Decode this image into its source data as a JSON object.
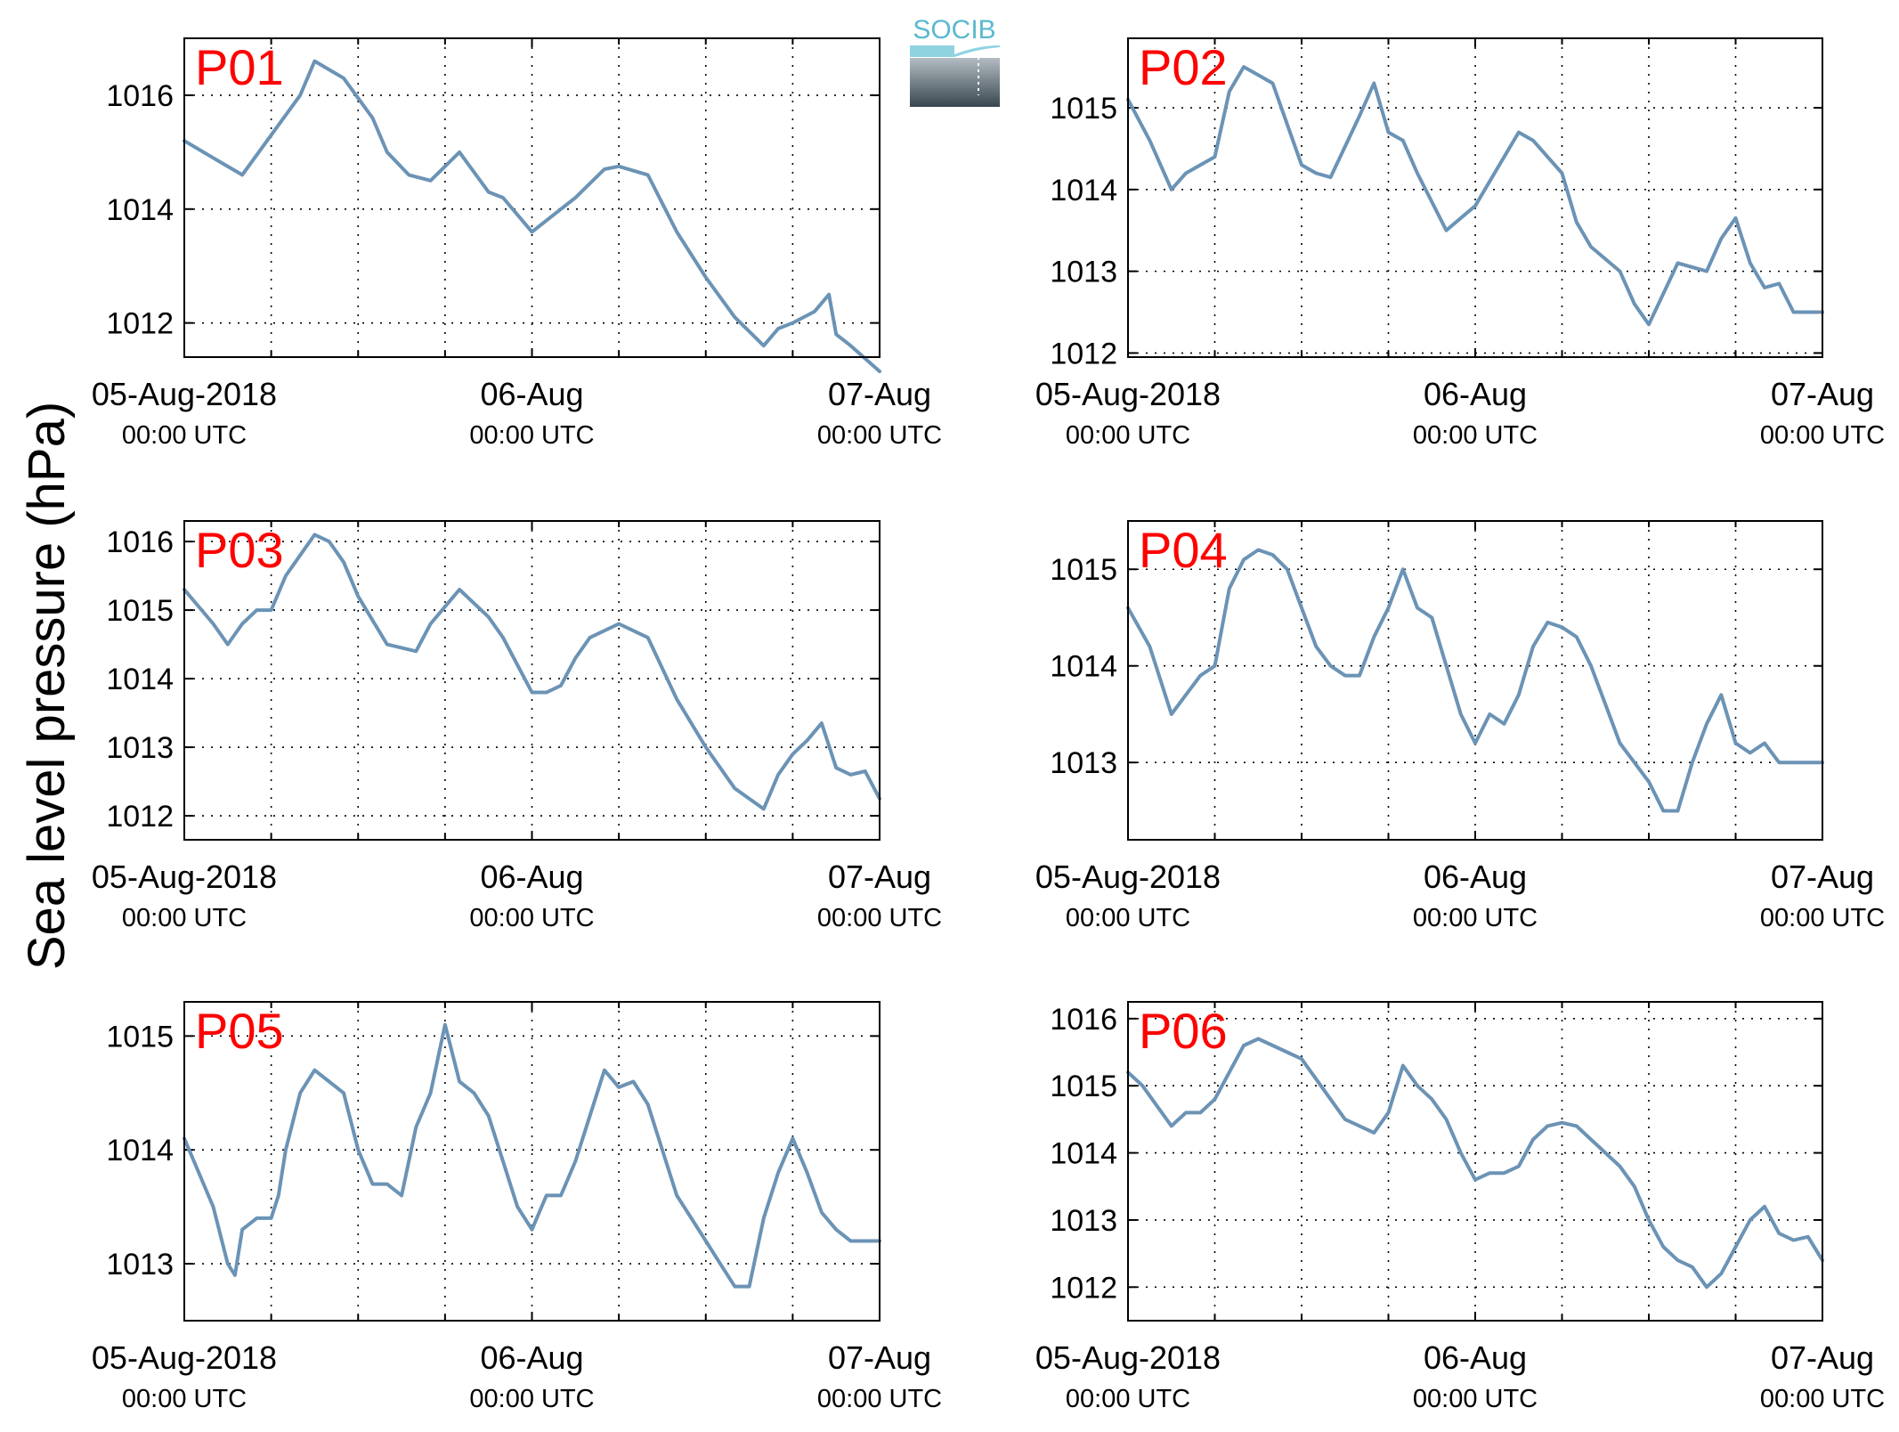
{
  "figure": {
    "ylabel": "Sea level pressure (hPa)",
    "logo_text": "SOCIB"
  },
  "colors": {
    "line": "#6b93b5",
    "panel_label": "#ff0000",
    "axis": "#000000",
    "grid": "#000000",
    "logo_text": "#5ab9cf",
    "logo_top": "#b3bcc3",
    "logo_bottom": "#38474f"
  },
  "chart_data": [
    {
      "type": "line",
      "name": "P01",
      "x_range": [
        "2018-08-05 00:00",
        "2018-08-07 00:00"
      ],
      "xticks": [
        {
          "main": "05-Aug-2018",
          "sub": "00:00 UTC"
        },
        {
          "main": "06-Aug",
          "sub": "00:00 UTC"
        },
        {
          "main": "07-Aug",
          "sub": "00:00 UTC"
        }
      ],
      "ylim": [
        1011.4,
        1017.0
      ],
      "yticks": [
        1012,
        1014,
        1016
      ],
      "x_hours": [
        0,
        2,
        4,
        6,
        8,
        9,
        11,
        13,
        14,
        15.5,
        17,
        19,
        21,
        22,
        24,
        26,
        27,
        29,
        30,
        32,
        34,
        36,
        38,
        40,
        41,
        42,
        43.5,
        44.5,
        45,
        46,
        48
      ],
      "y": [
        1015.2,
        1014.9,
        1014.6,
        1015.3,
        1016.0,
        1016.6,
        1016.3,
        1015.6,
        1015.0,
        1014.6,
        1014.5,
        1015.0,
        1014.3,
        1014.2,
        1013.6,
        1014.0,
        1014.2,
        1014.7,
        1014.75,
        1014.6,
        1013.6,
        1012.8,
        1012.1,
        1011.6,
        1011.9,
        1012.0,
        1012.2,
        1012.5,
        1011.8,
        1011.6,
        1011.15
      ],
      "grid": true
    },
    {
      "type": "line",
      "name": "P02",
      "x_range": [
        "2018-08-05 00:00",
        "2018-08-07 00:00"
      ],
      "xticks": [
        {
          "main": "05-Aug-2018",
          "sub": "00:00 UTC"
        },
        {
          "main": "06-Aug",
          "sub": "00:00 UTC"
        },
        {
          "main": "07-Aug",
          "sub": "00:00 UTC"
        }
      ],
      "ylim": [
        1011.95,
        1015.85
      ],
      "yticks": [
        1012,
        1013,
        1014,
        1015
      ],
      "x_hours": [
        0,
        1.5,
        3,
        4,
        5,
        6,
        7,
        8,
        9,
        10,
        12,
        13,
        14,
        16,
        17,
        18,
        19,
        20,
        22,
        24,
        26,
        27,
        28,
        30,
        31,
        32,
        34,
        35,
        36,
        38,
        40,
        41,
        42,
        43,
        44,
        45,
        46,
        47,
        48
      ],
      "y": [
        1015.1,
        1014.6,
        1014.0,
        1014.2,
        1014.3,
        1014.4,
        1015.2,
        1015.5,
        1015.4,
        1015.3,
        1014.3,
        1014.2,
        1014.15,
        1014.9,
        1015.3,
        1014.7,
        1014.6,
        1014.2,
        1013.5,
        1013.8,
        1014.4,
        1014.7,
        1014.6,
        1014.2,
        1013.6,
        1013.3,
        1013.0,
        1012.6,
        1012.35,
        1013.1,
        1013.0,
        1013.4,
        1013.65,
        1013.1,
        1012.8,
        1012.85,
        1012.5,
        1012.5,
        1012.5
      ],
      "grid": true
    },
    {
      "type": "line",
      "name": "P03",
      "x_range": [
        "2018-08-05 00:00",
        "2018-08-07 00:00"
      ],
      "xticks": [
        {
          "main": "05-Aug-2018",
          "sub": "00:00 UTC"
        },
        {
          "main": "06-Aug",
          "sub": "00:00 UTC"
        },
        {
          "main": "07-Aug",
          "sub": "00:00 UTC"
        }
      ],
      "ylim": [
        1011.65,
        1016.3
      ],
      "yticks": [
        1012,
        1013,
        1014,
        1015,
        1016
      ],
      "x_hours": [
        0,
        2,
        3,
        4,
        5,
        6,
        7,
        9,
        10,
        11,
        12,
        14,
        16,
        17,
        19,
        21,
        22,
        23,
        24,
        25,
        26,
        27,
        28,
        30,
        32,
        34,
        36,
        38,
        40,
        41,
        42,
        43,
        44,
        45,
        46,
        47,
        48
      ],
      "y": [
        1015.3,
        1014.8,
        1014.5,
        1014.8,
        1015.0,
        1015.0,
        1015.5,
        1016.1,
        1016.0,
        1015.7,
        1015.2,
        1014.5,
        1014.4,
        1014.8,
        1015.3,
        1014.9,
        1014.6,
        1014.2,
        1013.8,
        1013.8,
        1013.9,
        1014.3,
        1014.6,
        1014.8,
        1014.6,
        1013.7,
        1013.0,
        1012.4,
        1012.1,
        1012.6,
        1012.9,
        1013.1,
        1013.35,
        1012.7,
        1012.6,
        1012.65,
        1012.25
      ],
      "grid": true
    },
    {
      "type": "line",
      "name": "P04",
      "x_range": [
        "2018-08-05 00:00",
        "2018-08-07 00:00"
      ],
      "xticks": [
        {
          "main": "05-Aug-2018",
          "sub": "00:00 UTC"
        },
        {
          "main": "06-Aug",
          "sub": "00:00 UTC"
        },
        {
          "main": "07-Aug",
          "sub": "00:00 UTC"
        }
      ],
      "ylim": [
        1012.2,
        1015.5
      ],
      "yticks": [
        1013,
        1014,
        1015
      ],
      "x_hours": [
        0,
        1.5,
        3,
        4,
        5,
        6,
        7,
        8,
        9,
        10,
        11,
        12,
        13,
        14,
        15,
        16,
        17,
        18,
        19,
        20,
        21,
        22,
        23,
        24,
        25,
        26,
        27,
        28,
        29,
        30,
        31,
        32,
        33,
        34,
        35,
        36,
        37,
        38,
        39,
        40,
        41,
        42,
        43,
        44,
        45,
        46,
        47,
        48
      ],
      "y": [
        1014.6,
        1014.2,
        1013.5,
        1013.7,
        1013.9,
        1014.0,
        1014.8,
        1015.1,
        1015.2,
        1015.15,
        1015.0,
        1014.6,
        1014.2,
        1014.0,
        1013.9,
        1013.9,
        1014.3,
        1014.6,
        1015.0,
        1014.6,
        1014.5,
        1014.0,
        1013.5,
        1013.2,
        1013.5,
        1013.4,
        1013.7,
        1014.2,
        1014.45,
        1014.4,
        1014.3,
        1014.0,
        1013.6,
        1013.2,
        1013.0,
        1012.8,
        1012.5,
        1012.5,
        1013.0,
        1013.4,
        1013.7,
        1013.2,
        1013.1,
        1013.2,
        1013.0,
        1013.0,
        1013.0,
        1013.0
      ],
      "grid": true
    },
    {
      "type": "line",
      "name": "P05",
      "x_range": [
        "2018-08-05 00:00",
        "2018-08-07 00:00"
      ],
      "xticks": [
        {
          "main": "05-Aug-2018",
          "sub": "00:00 UTC"
        },
        {
          "main": "06-Aug",
          "sub": "00:00 UTC"
        },
        {
          "main": "07-Aug",
          "sub": "00:00 UTC"
        }
      ],
      "ylim": [
        1012.5,
        1015.3
      ],
      "yticks": [
        1013,
        1014,
        1015
      ],
      "x_hours": [
        0,
        2,
        3,
        3.5,
        4,
        5,
        6,
        6.5,
        7,
        8,
        9,
        10,
        11,
        12,
        13,
        14,
        15,
        16,
        17,
        18,
        19,
        20,
        21,
        22,
        23,
        24,
        25,
        26,
        27,
        28,
        29,
        30,
        31,
        32,
        33,
        34,
        35,
        36,
        37,
        38,
        39,
        40,
        41,
        42,
        43,
        44,
        45,
        46,
        47,
        48
      ],
      "y": [
        1014.1,
        1013.5,
        1013.0,
        1012.9,
        1013.3,
        1013.4,
        1013.4,
        1013.6,
        1014.0,
        1014.5,
        1014.7,
        1014.6,
        1014.5,
        1014.0,
        1013.7,
        1013.7,
        1013.6,
        1014.2,
        1014.5,
        1015.1,
        1014.6,
        1014.5,
        1014.3,
        1013.9,
        1013.5,
        1013.3,
        1013.6,
        1013.6,
        1013.9,
        1014.3,
        1014.7,
        1014.55,
        1014.6,
        1014.4,
        1014.0,
        1013.6,
        1013.4,
        1013.2,
        1013.0,
        1012.8,
        1012.8,
        1013.4,
        1013.8,
        1014.1,
        1013.8,
        1013.45,
        1013.3,
        1013.2,
        1013.2,
        1013.2
      ],
      "grid": true
    },
    {
      "type": "line",
      "name": "P06",
      "x_range": [
        "2018-08-05 00:00",
        "2018-08-07 00:00"
      ],
      "xticks": [
        {
          "main": "05-Aug-2018",
          "sub": "00:00 UTC"
        },
        {
          "main": "06-Aug",
          "sub": "00:00 UTC"
        },
        {
          "main": "07-Aug",
          "sub": "00:00 UTC"
        }
      ],
      "ylim": [
        1011.5,
        1016.25
      ],
      "yticks": [
        1012,
        1013,
        1014,
        1015,
        1016
      ],
      "x_hours": [
        0,
        1,
        2,
        3,
        4,
        5,
        6,
        7,
        8,
        9,
        10,
        11,
        12,
        13,
        14,
        15,
        16,
        17,
        18,
        19,
        20,
        21,
        22,
        23,
        24,
        25,
        26,
        27,
        28,
        29,
        30,
        31,
        32,
        33,
        34,
        35,
        36,
        37,
        38,
        39,
        40,
        41,
        42,
        43,
        44,
        45,
        46,
        47,
        48
      ],
      "y": [
        1015.2,
        1015.0,
        1014.7,
        1014.4,
        1014.6,
        1014.6,
        1014.8,
        1015.2,
        1015.6,
        1015.7,
        1015.6,
        1015.5,
        1015.4,
        1015.1,
        1014.8,
        1014.5,
        1014.4,
        1014.3,
        1014.6,
        1015.3,
        1015.0,
        1014.8,
        1014.5,
        1014.0,
        1013.6,
        1013.7,
        1013.7,
        1013.8,
        1014.2,
        1014.4,
        1014.45,
        1014.4,
        1014.2,
        1014.0,
        1013.8,
        1013.5,
        1013.0,
        1012.6,
        1012.4,
        1012.3,
        1012.0,
        1012.2,
        1012.6,
        1013.0,
        1013.2,
        1012.8,
        1012.7,
        1012.75,
        1012.4
      ],
      "grid": true
    }
  ]
}
